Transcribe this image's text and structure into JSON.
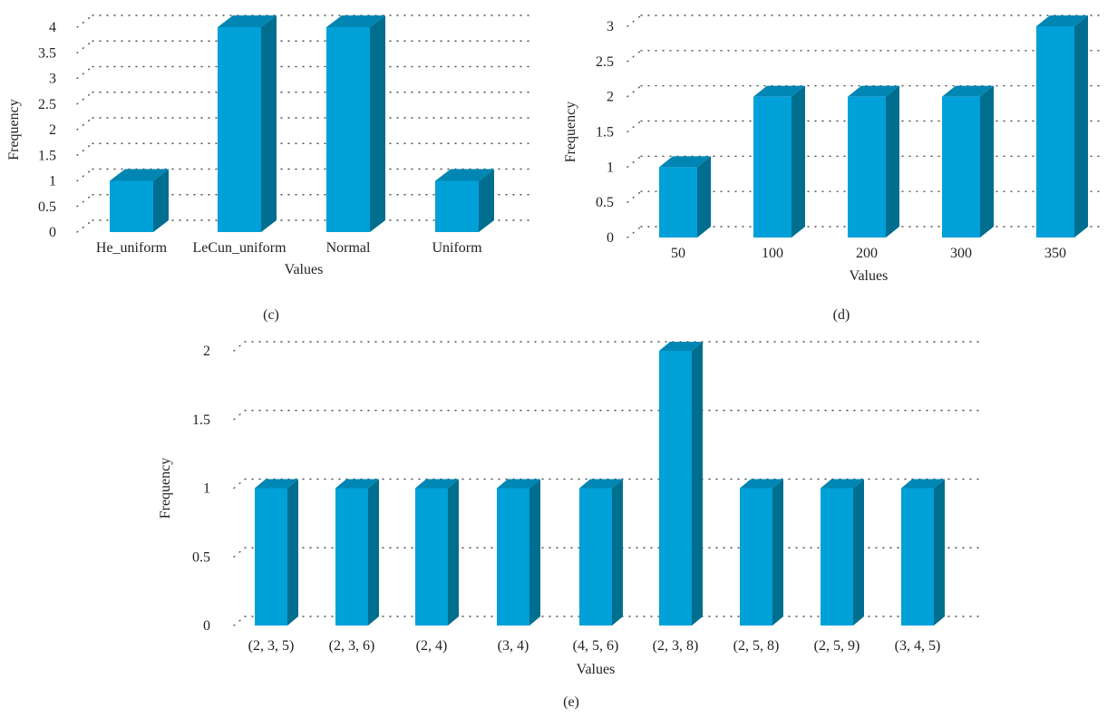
{
  "colors": {
    "bar_front": "#00a0d8",
    "bar_side": "#006e8f",
    "bar_top": "#0086b3",
    "grid": "#555555",
    "text": "#222222"
  },
  "panels": [
    {
      "caption": "(c)"
    },
    {
      "caption": "(d)"
    },
    {
      "caption": "(e)"
    }
  ],
  "chart_data": [
    {
      "type": "bar",
      "panel": "(c)",
      "categories": [
        "He_uniform",
        "LeCun_uniform",
        "Normal",
        "Uniform"
      ],
      "values": [
        1,
        4,
        4,
        1
      ],
      "xlabel": "Values",
      "ylabel": "Frequency",
      "ylim": [
        0,
        4
      ],
      "yticks": [
        "0",
        "0.5",
        "1",
        "1.5",
        "2",
        "2.5",
        "3",
        "3.5",
        "4"
      ],
      "grid": true,
      "three_d": true
    },
    {
      "type": "bar",
      "panel": "(d)",
      "categories": [
        "50",
        "100",
        "200",
        "300",
        "350"
      ],
      "values": [
        1,
        2,
        2,
        2,
        3
      ],
      "xlabel": "Values",
      "ylabel": "Frequency",
      "ylim": [
        0,
        3
      ],
      "yticks": [
        "0",
        "0.5",
        "1",
        "1.5",
        "2",
        "2.5",
        "3"
      ],
      "grid": true,
      "three_d": true
    },
    {
      "type": "bar",
      "panel": "(e)",
      "categories": [
        "(2, 3, 5)",
        "(2, 3, 6)",
        "(2, 4)",
        "(3, 4)",
        "(4, 5, 6)",
        "(2, 3, 8)",
        "(2, 5, 8)",
        "(2, 5, 9)",
        "(3, 4, 5)"
      ],
      "values": [
        1,
        1,
        1,
        1,
        1,
        2,
        1,
        1,
        1
      ],
      "xlabel": "Values",
      "ylabel": "Frequency",
      "ylim": [
        0,
        2
      ],
      "yticks": [
        "0",
        "0.5",
        "1",
        "1.5",
        "2"
      ],
      "grid": true,
      "three_d": true
    }
  ]
}
